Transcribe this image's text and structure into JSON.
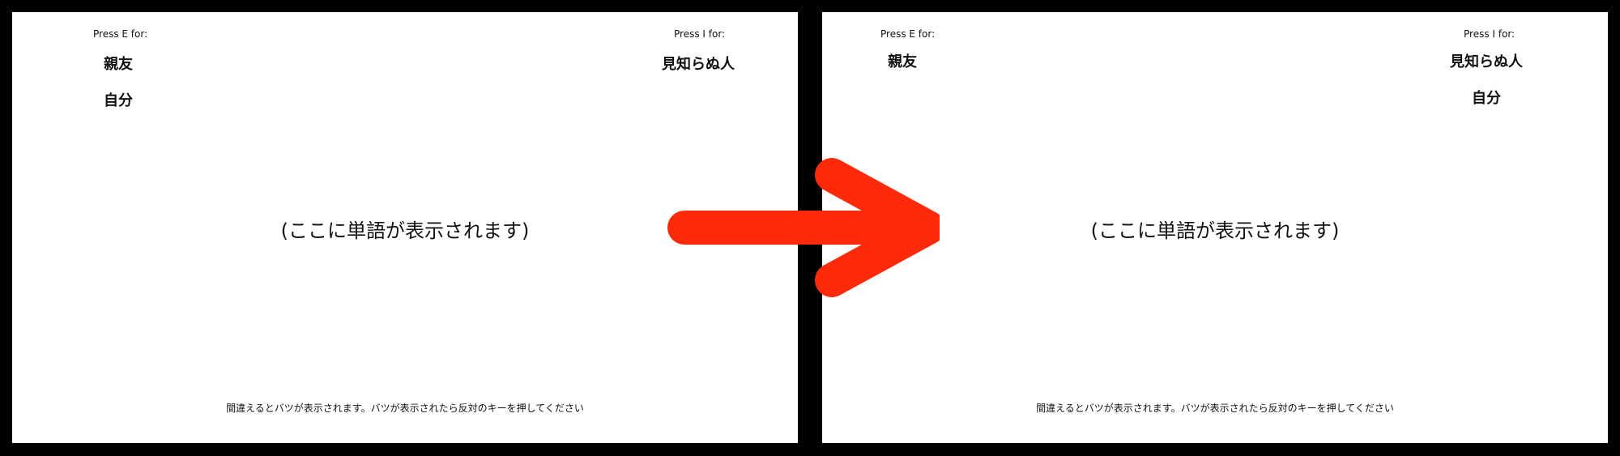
{
  "arrow_color": "#ff2a0a",
  "screens": [
    {
      "left_key_label": "Press E for:",
      "left_categories": [
        "親友",
        "自分"
      ],
      "right_key_label": "Press I for:",
      "right_categories": [
        "見知らぬ人"
      ],
      "stimulus_placeholder": "(ここに単語が表示されます)",
      "instruction": "間違えるとバツが表示されます。バツが表示されたら反対のキーを押してください"
    },
    {
      "left_key_label": "Press E for:",
      "left_categories": [
        "親友"
      ],
      "right_key_label": "Press I for:",
      "right_categories": [
        "見知らぬ人",
        "自分"
      ],
      "stimulus_placeholder": "(ここに単語が表示されます)",
      "instruction": "間違えるとバツが表示されます。バツが表示されたら反対のキーを押してください"
    }
  ]
}
